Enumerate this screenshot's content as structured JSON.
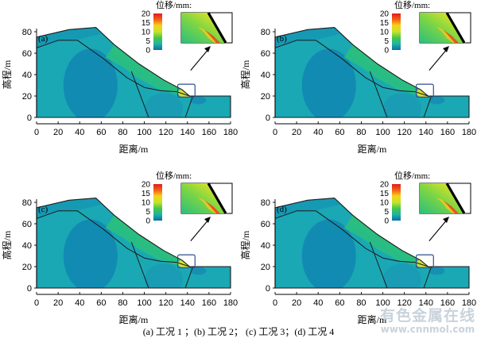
{
  "panels": [
    {
      "tag": "(a)"
    },
    {
      "tag": "(b)"
    },
    {
      "tag": "(c)"
    },
    {
      "tag": "(d)"
    }
  ],
  "axes": {
    "xlabel": "距离/m",
    "ylabel": "高程/m",
    "xticks": [
      0,
      20,
      40,
      60,
      80,
      100,
      120,
      140,
      160,
      180
    ],
    "yticks": [
      0,
      20,
      40,
      60,
      80
    ],
    "xlim": [
      0,
      180
    ],
    "ylim": [
      0,
      90
    ]
  },
  "colorbar": {
    "title": "位移/mm:",
    "ticks": [
      0,
      5,
      10,
      15,
      20
    ],
    "colors": [
      "#0b6fa8",
      "#1fb4a2",
      "#43c64b",
      "#c5e42a",
      "#f7d217",
      "#f26316",
      "#e31a1c"
    ]
  },
  "caption": "(a)  工况 1 ；(b)  工况 2；  (c)  工况 3；(d)  工况 4",
  "watermark": {
    "main": "有色金属在线",
    "url": "www.cnnmol.com"
  }
}
